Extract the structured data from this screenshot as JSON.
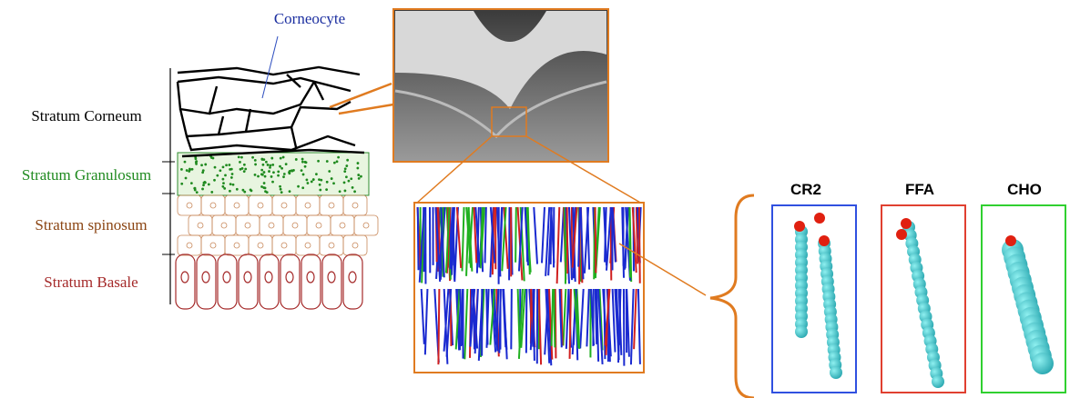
{
  "labels": {
    "corneocyte": "Corneocyte"
  },
  "layers": [
    "Stratum Corneum",
    "Stratum Granulosum",
    "Stratum spinosum",
    "Stratum Basale"
  ],
  "molecules": [
    "CR2",
    "FFA",
    "CHO"
  ]
}
